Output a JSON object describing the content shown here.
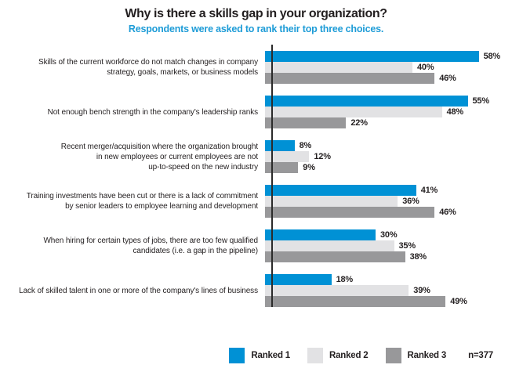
{
  "chart_data": {
    "type": "bar",
    "orientation": "horizontal",
    "title": "Why is there a skills gap in your organization?",
    "subtitle": "Respondents were asked to rank their top three choices.",
    "subtitle_color": "#1e9cd7",
    "unit": "%",
    "xlim": [
      0,
      64
    ],
    "grid": false,
    "value_labels": true,
    "legend_position": "bottom-right",
    "axis_color": "#2b2b2b",
    "categories": [
      "Skills of the current workforce do not match changes in company\nstrategy, goals, markets, or business models",
      "Not enough bench strength in the company's leadership ranks",
      "Recent merger/acquisition where the organization brought\nin new employees or current employees are not\nup-to-speed on the new industry",
      "Training investments have been cut or there is a lack of commitment\nby senior leaders to employee learning and development",
      "When hiring for certain types of jobs, there are too few qualified\ncandidates (i.e. a gap in the pipeline)",
      "Lack of skilled talent in one or more of the company's lines of business"
    ],
    "series": [
      {
        "name": "Ranked 1",
        "color": "#0091d5",
        "values": [
          58,
          55,
          8,
          41,
          30,
          18
        ]
      },
      {
        "name": "Ranked 2",
        "color": "#e2e2e4",
        "values": [
          40,
          48,
          12,
          36,
          35,
          39
        ]
      },
      {
        "name": "Ranked 3",
        "color": "#98989a",
        "values": [
          46,
          22,
          9,
          46,
          38,
          49
        ]
      }
    ],
    "note": "n=377"
  }
}
